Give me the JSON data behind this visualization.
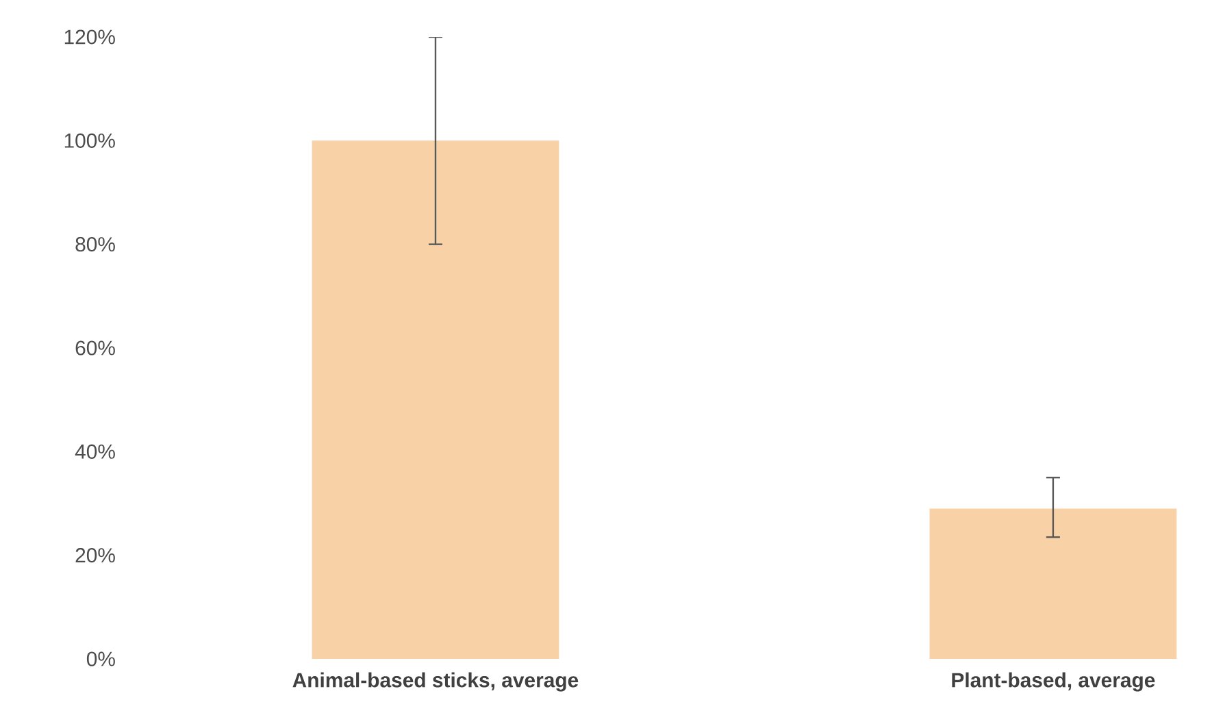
{
  "chart_data": {
    "type": "bar",
    "categories": [
      "Animal-based sticks, average",
      "Plant-based, average"
    ],
    "values": [
      100,
      29
    ],
    "errors": [
      [
        80,
        120
      ],
      [
        23.5,
        35
      ]
    ],
    "color": "#f9d1a6",
    "ylim": [
      0,
      120
    ],
    "yticks": [
      {
        "value": 0,
        "label": "0%"
      },
      {
        "value": 20,
        "label": "20%"
      },
      {
        "value": 40,
        "label": "40%"
      },
      {
        "value": 60,
        "label": "60%"
      },
      {
        "value": 80,
        "label": "80%"
      },
      {
        "value": 100,
        "label": "100%"
      },
      {
        "value": 120,
        "label": "120%"
      }
    ],
    "grid": false
  }
}
